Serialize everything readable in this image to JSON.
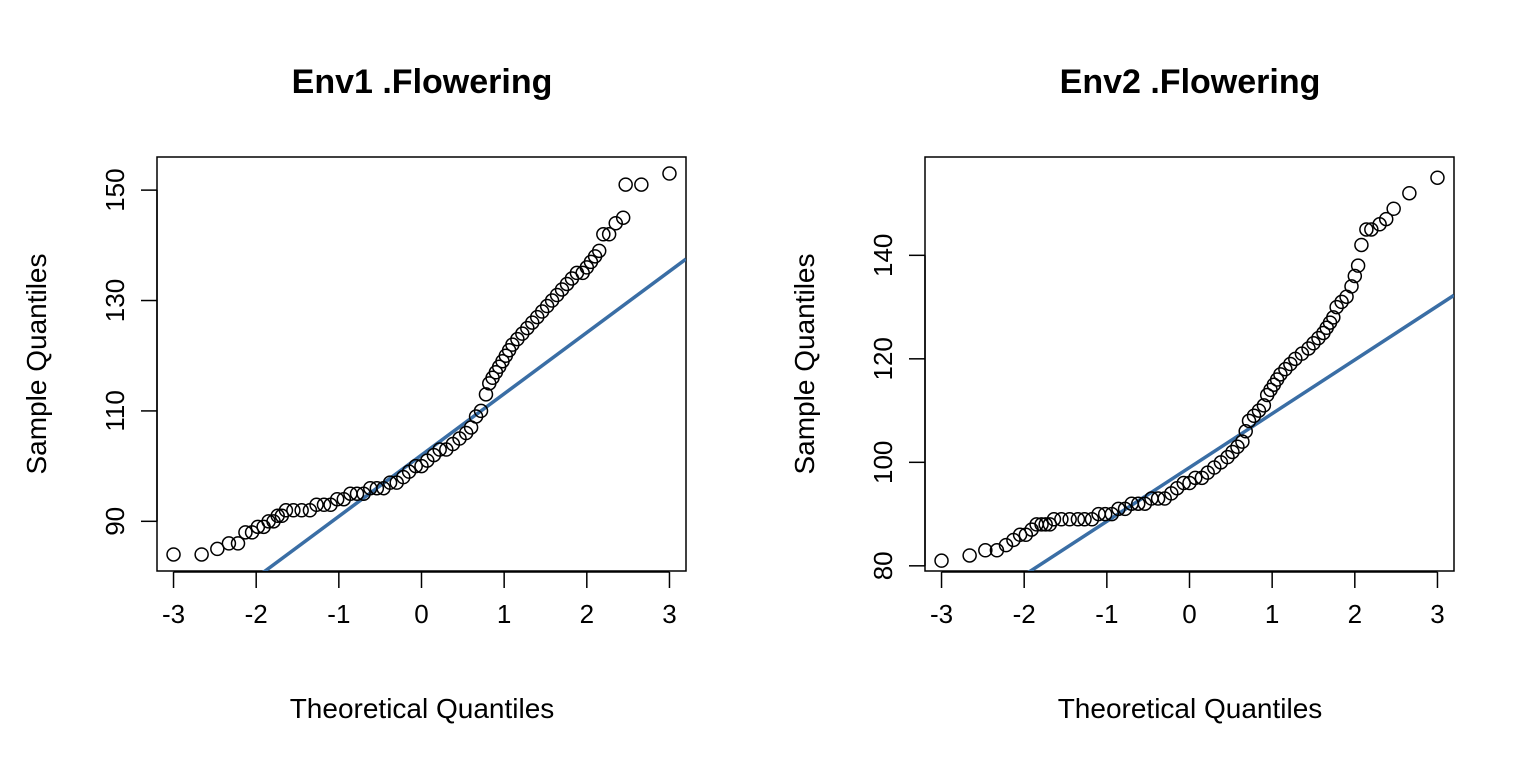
{
  "chart_data": [
    {
      "type": "scatter",
      "title": "Env1 .Flowering",
      "xlabel": "Theoretical Quantiles",
      "ylabel": "Sample Quantiles",
      "xlim": [
        -3.2,
        3.2
      ],
      "ylim": [
        81,
        156
      ],
      "x_ticks": [
        "-3",
        "-2",
        "-1",
        "0",
        "1",
        "2",
        "3"
      ],
      "y_ticks": [
        "90",
        "110",
        "130",
        "150"
      ],
      "marker": "open-circle",
      "grid": false,
      "ref_line": {
        "intercept": 102.0,
        "slope": 11.1,
        "color": "#3A6EA5"
      },
      "series": [
        {
          "points": [
            [
              -3.0,
              84
            ],
            [
              -2.66,
              84
            ],
            [
              -2.47,
              85
            ],
            [
              -2.33,
              86
            ],
            [
              -2.22,
              86
            ],
            [
              -2.13,
              88
            ],
            [
              -2.05,
              88
            ],
            [
              -1.98,
              89
            ],
            [
              -1.91,
              89
            ],
            [
              -1.85,
              90
            ],
            [
              -1.79,
              90
            ],
            [
              -1.74,
              91
            ],
            [
              -1.69,
              91
            ],
            [
              -1.64,
              92
            ],
            [
              -1.55,
              92
            ],
            [
              -1.45,
              92
            ],
            [
              -1.35,
              92
            ],
            [
              -1.27,
              93
            ],
            [
              -1.18,
              93
            ],
            [
              -1.1,
              93
            ],
            [
              -1.02,
              94
            ],
            [
              -0.94,
              94
            ],
            [
              -0.86,
              95
            ],
            [
              -0.78,
              95
            ],
            [
              -0.7,
              95
            ],
            [
              -0.62,
              96
            ],
            [
              -0.54,
              96
            ],
            [
              -0.46,
              96
            ],
            [
              -0.38,
              97
            ],
            [
              -0.3,
              97
            ],
            [
              -0.22,
              98
            ],
            [
              -0.15,
              99
            ],
            [
              -0.07,
              100
            ],
            [
              0.0,
              100
            ],
            [
              0.07,
              101
            ],
            [
              0.15,
              102
            ],
            [
              0.22,
              103
            ],
            [
              0.3,
              103
            ],
            [
              0.38,
              104
            ],
            [
              0.46,
              105
            ],
            [
              0.54,
              106
            ],
            [
              0.6,
              107
            ],
            [
              0.66,
              109
            ],
            [
              0.72,
              110
            ],
            [
              0.78,
              113
            ],
            [
              0.82,
              115
            ],
            [
              0.86,
              116
            ],
            [
              0.9,
              117
            ],
            [
              0.94,
              118
            ],
            [
              0.98,
              119
            ],
            [
              1.02,
              120
            ],
            [
              1.06,
              121
            ],
            [
              1.1,
              122
            ],
            [
              1.16,
              123
            ],
            [
              1.22,
              124
            ],
            [
              1.28,
              125
            ],
            [
              1.34,
              126
            ],
            [
              1.4,
              127
            ],
            [
              1.46,
              128
            ],
            [
              1.52,
              129
            ],
            [
              1.58,
              130
            ],
            [
              1.64,
              131
            ],
            [
              1.7,
              132
            ],
            [
              1.76,
              133
            ],
            [
              1.82,
              134
            ],
            [
              1.88,
              135
            ],
            [
              1.95,
              135
            ],
            [
              2.0,
              136
            ],
            [
              2.05,
              137
            ],
            [
              2.1,
              138
            ],
            [
              2.15,
              139
            ],
            [
              2.2,
              142
            ],
            [
              2.27,
              142
            ],
            [
              2.35,
              144
            ],
            [
              2.44,
              145
            ],
            [
              2.47,
              151
            ],
            [
              2.66,
              151
            ],
            [
              3.0,
              153
            ]
          ]
        }
      ]
    },
    {
      "type": "scatter",
      "title": "Env2 .Flowering",
      "xlabel": "Theoretical Quantiles",
      "ylabel": "Sample Quantiles",
      "xlim": [
        -3.2,
        3.2
      ],
      "ylim": [
        79,
        159
      ],
      "x_ticks": [
        "-3",
        "-2",
        "-1",
        "0",
        "1",
        "2",
        "3"
      ],
      "y_ticks": [
        "80",
        "100",
        "120",
        "140"
      ],
      "marker": "open-circle",
      "grid": false,
      "ref_line": {
        "intercept": 99.0,
        "slope": 10.4,
        "color": "#3A6EA5"
      },
      "series": [
        {
          "points": [
            [
              -3.0,
              81
            ],
            [
              -2.66,
              82
            ],
            [
              -2.47,
              83
            ],
            [
              -2.33,
              83
            ],
            [
              -2.22,
              84
            ],
            [
              -2.13,
              85
            ],
            [
              -2.05,
              86
            ],
            [
              -1.98,
              86
            ],
            [
              -1.91,
              87
            ],
            [
              -1.85,
              88
            ],
            [
              -1.79,
              88
            ],
            [
              -1.74,
              88
            ],
            [
              -1.69,
              88
            ],
            [
              -1.64,
              89
            ],
            [
              -1.55,
              89
            ],
            [
              -1.45,
              89
            ],
            [
              -1.35,
              89
            ],
            [
              -1.27,
              89
            ],
            [
              -1.18,
              89
            ],
            [
              -1.1,
              90
            ],
            [
              -1.02,
              90
            ],
            [
              -0.94,
              90
            ],
            [
              -0.86,
              91
            ],
            [
              -0.78,
              91
            ],
            [
              -0.7,
              92
            ],
            [
              -0.62,
              92
            ],
            [
              -0.54,
              92
            ],
            [
              -0.46,
              93
            ],
            [
              -0.38,
              93
            ],
            [
              -0.3,
              93
            ],
            [
              -0.22,
              94
            ],
            [
              -0.15,
              95
            ],
            [
              -0.07,
              96
            ],
            [
              0.0,
              96
            ],
            [
              0.07,
              97
            ],
            [
              0.15,
              97
            ],
            [
              0.22,
              98
            ],
            [
              0.3,
              99
            ],
            [
              0.38,
              100
            ],
            [
              0.46,
              101
            ],
            [
              0.52,
              102
            ],
            [
              0.58,
              103
            ],
            [
              0.64,
              104
            ],
            [
              0.68,
              106
            ],
            [
              0.72,
              108
            ],
            [
              0.78,
              109
            ],
            [
              0.84,
              110
            ],
            [
              0.9,
              111
            ],
            [
              0.94,
              113
            ],
            [
              0.98,
              114
            ],
            [
              1.02,
              115
            ],
            [
              1.06,
              116
            ],
            [
              1.1,
              117
            ],
            [
              1.16,
              118
            ],
            [
              1.22,
              119
            ],
            [
              1.28,
              120
            ],
            [
              1.36,
              121
            ],
            [
              1.44,
              122
            ],
            [
              1.5,
              123
            ],
            [
              1.56,
              124
            ],
            [
              1.62,
              125
            ],
            [
              1.66,
              126
            ],
            [
              1.7,
              127
            ],
            [
              1.74,
              128
            ],
            [
              1.78,
              130
            ],
            [
              1.84,
              131
            ],
            [
              1.9,
              132
            ],
            [
              1.96,
              134
            ],
            [
              2.0,
              136
            ],
            [
              2.04,
              138
            ],
            [
              2.08,
              142
            ],
            [
              2.14,
              145
            ],
            [
              2.2,
              145
            ],
            [
              2.3,
              146
            ],
            [
              2.38,
              147
            ],
            [
              2.47,
              149
            ],
            [
              2.66,
              152
            ],
            [
              3.0,
              155
            ]
          ]
        }
      ]
    }
  ]
}
